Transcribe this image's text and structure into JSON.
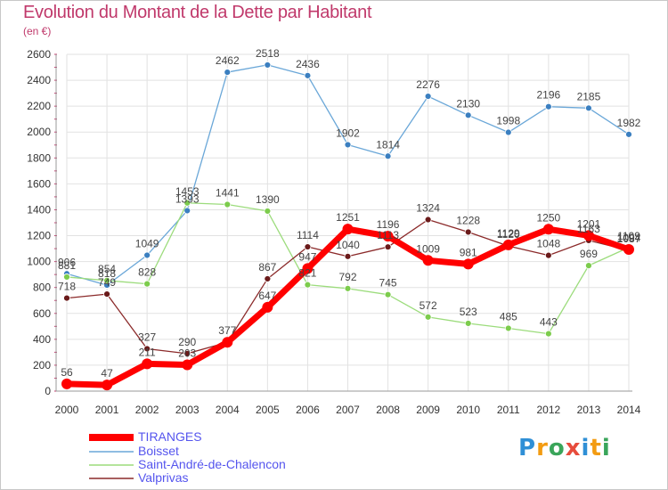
{
  "title": "Evolution du Montant de la Dette par Habitant",
  "subtitle": "(en €)",
  "logo": {
    "text": "Proxiti",
    "letters": [
      {
        "ch": "P",
        "color": "#2f8fd6"
      },
      {
        "ch": "r",
        "color": "#f39c12"
      },
      {
        "ch": "o",
        "color": "#3aa55a"
      },
      {
        "ch": "x",
        "color": "#e74c3c"
      },
      {
        "ch": "i",
        "color": "#2f8fd6"
      },
      {
        "ch": "t",
        "color": "#f39c12"
      },
      {
        "ch": "i",
        "color": "#3aa55a"
      }
    ]
  },
  "chart_data": {
    "type": "line",
    "title": "Evolution du Montant de la Dette par Habitant",
    "ylabel": "(en €)",
    "xlabel": "",
    "x": [
      "2000",
      "2001",
      "2002",
      "2003",
      "2004",
      "2005",
      "2006",
      "2007",
      "2008",
      "2009",
      "2010",
      "2011",
      "2012",
      "2013",
      "2014"
    ],
    "ylim": [
      0,
      2600
    ],
    "yticks": [
      0,
      200,
      400,
      600,
      800,
      1000,
      1200,
      1400,
      1600,
      1800,
      2000,
      2200,
      2400,
      2600
    ],
    "grid": true,
    "legend": "bottom-left",
    "series": [
      {
        "name": "TIRANGES",
        "color": "#ff0000",
        "width": 7,
        "marker": "#ff0000",
        "values": [
          56,
          47,
          211,
          203,
          377,
          647,
          947,
          1251,
          1196,
          1009,
          981,
          1129,
          1250,
          1201,
          1094
        ],
        "labels": [
          "56",
          "47",
          "211",
          "203",
          "377",
          "647",
          "947",
          "1251",
          "1196",
          "1009",
          "981",
          "1129",
          "1250",
          "1201",
          "1094"
        ]
      },
      {
        "name": "Boisset",
        "color": "#6aa7d8",
        "width": 1.3,
        "marker": "#3b7fc0",
        "values": [
          906,
          818,
          1049,
          1393,
          2462,
          2518,
          2436,
          1902,
          1814,
          2276,
          2130,
          1998,
          2196,
          2185,
          1982
        ],
        "labels": [
          "906",
          "818",
          "1049",
          "1393",
          "2462",
          "2518",
          "2436",
          "1902",
          "1814",
          "2276",
          "2130",
          "1998",
          "2196",
          "2185",
          "1982"
        ]
      },
      {
        "name": "Saint-André-de-Chalencon",
        "color": "#9cdc7c",
        "width": 1.3,
        "marker": "#7ccc4c",
        "values": [
          881,
          854,
          828,
          1453,
          1441,
          1390,
          821,
          792,
          745,
          572,
          523,
          485,
          443,
          969,
          1109
        ],
        "labels": [
          "881",
          "854",
          "828",
          "1453",
          "1441",
          "1390",
          "821",
          "792",
          "745",
          "572",
          "523",
          "485",
          "443",
          "969",
          "1109"
        ]
      },
      {
        "name": "Valprivas",
        "color": "#8b2a2a",
        "width": 1.3,
        "marker": "#6a1a1a",
        "values": [
          718,
          749,
          327,
          290,
          377,
          867,
          1114,
          1040,
          1113,
          1324,
          1228,
          1120,
          1048,
          1163,
          1087
        ],
        "labels": [
          "718",
          "749",
          "327",
          "290",
          "",
          "867",
          "1114",
          "1040",
          "1113",
          "1324",
          "1228",
          "1120",
          "1048",
          "1163",
          "1087"
        ]
      }
    ]
  }
}
